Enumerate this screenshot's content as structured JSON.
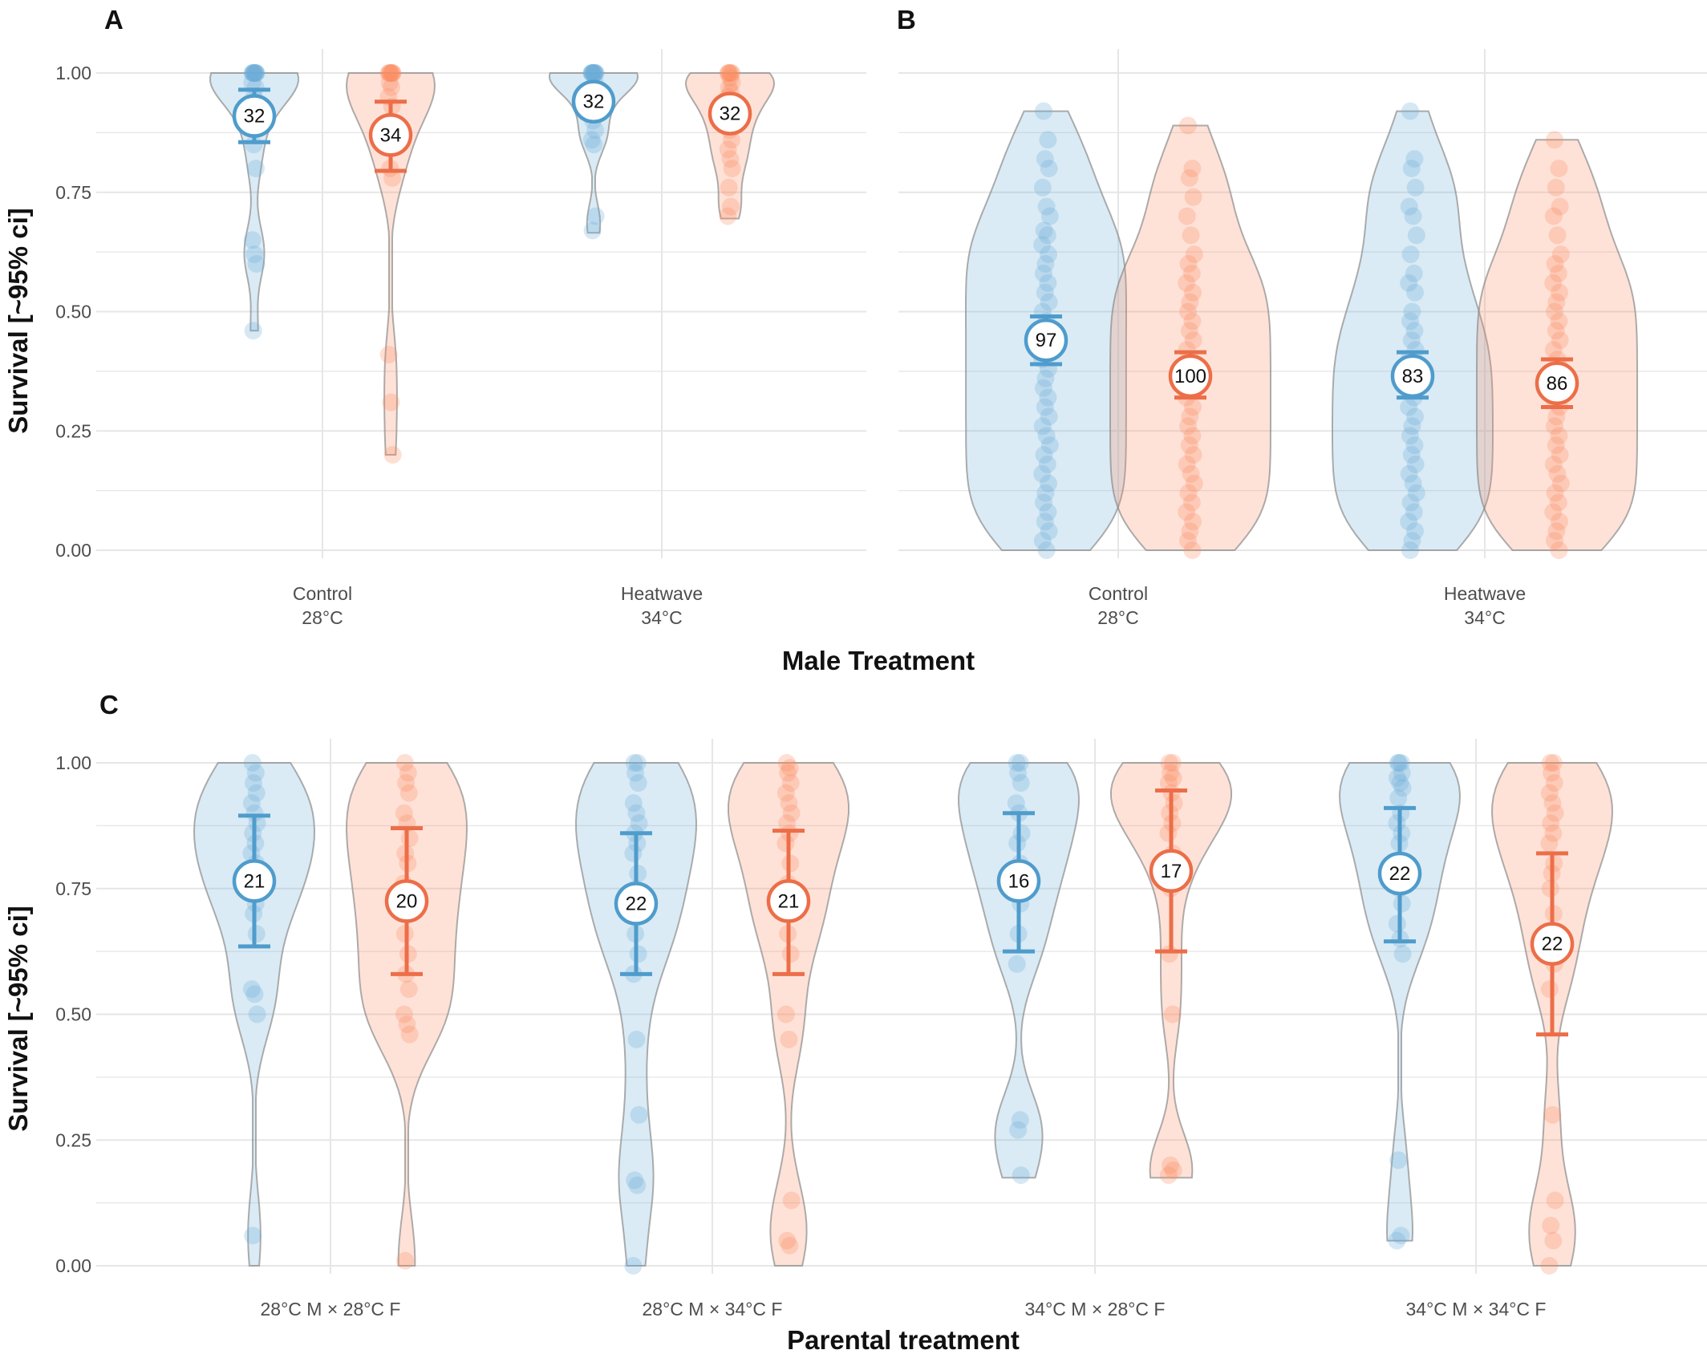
{
  "colors": {
    "blue": "#6baed6",
    "orange": "#fc8d62",
    "blue_line": "#4f9ccc",
    "orange_line": "#ec6e48",
    "grid": "#e6e6e6",
    "violin_stroke": "#8c8c8c"
  },
  "chart_data": [
    {
      "panel": "A",
      "type": "violin",
      "ylabel": "Survival [~95% ci]",
      "xlabel": "",
      "ylim": [
        0,
        1
      ],
      "yticks": [
        "0.00",
        "0.25",
        "0.50",
        "0.75",
        "1.00"
      ],
      "categories": [
        {
          "label_line1": "Control",
          "label_line2": "28°C"
        },
        {
          "label_line1": "Heatwave",
          "label_line2": "34°C"
        }
      ],
      "groups": [
        {
          "category": 0,
          "color": "blue",
          "n": "32",
          "mean": 0.91,
          "ci": [
            0.855,
            0.965
          ],
          "vmin": 0.46,
          "vmax": 1.0,
          "ymin": 0.46,
          "ymax": 1.0,
          "points": [
            1.0,
            1.0,
            1.0,
            1.0,
            1.0,
            1.0,
            1.0,
            1.0,
            1.0,
            0.98,
            0.97,
            0.95,
            0.93,
            0.9,
            0.85,
            0.8,
            0.65,
            0.62,
            0.6,
            0.46
          ]
        },
        {
          "category": 0,
          "color": "orange",
          "n": "34",
          "mean": 0.87,
          "ci": [
            0.795,
            0.94
          ],
          "vmin": 0.2,
          "vmax": 1.0,
          "ymin": 0.2,
          "ymax": 1.0,
          "points": [
            1.0,
            1.0,
            1.0,
            1.0,
            1.0,
            1.0,
            1.0,
            0.98,
            0.97,
            0.95,
            0.93,
            0.9,
            0.88,
            0.85,
            0.8,
            0.78,
            0.41,
            0.31,
            0.2
          ]
        },
        {
          "category": 1,
          "color": "blue",
          "n": "32",
          "mean": 0.94,
          "ci": [
            0.925,
            0.955
          ],
          "vmin": 0.665,
          "vmax": 1.0,
          "ymin": 0.665,
          "ymax": 1.0,
          "points": [
            1.0,
            1.0,
            1.0,
            1.0,
            1.0,
            1.0,
            1.0,
            1.0,
            1.0,
            1.0,
            0.98,
            0.97,
            0.95,
            0.93,
            0.9,
            0.88,
            0.86,
            0.85,
            0.7,
            0.67
          ]
        },
        {
          "category": 1,
          "color": "orange",
          "n": "32",
          "mean": 0.915,
          "ci": [
            0.9,
            0.93
          ],
          "vmin": 0.695,
          "vmax": 1.0,
          "ymin": 0.695,
          "ymax": 1.0,
          "points": [
            1.0,
            1.0,
            1.0,
            1.0,
            1.0,
            0.99,
            0.98,
            0.97,
            0.96,
            0.95,
            0.94,
            0.93,
            0.91,
            0.9,
            0.88,
            0.86,
            0.84,
            0.82,
            0.8,
            0.76,
            0.72,
            0.7
          ]
        }
      ]
    },
    {
      "panel": "B",
      "type": "violin",
      "ylabel": "",
      "xlabel": "",
      "ylim": [
        0,
        1
      ],
      "yticks": [
        "0.00",
        "0.25",
        "0.50",
        "0.75",
        "1.00"
      ],
      "categories": [
        {
          "label_line1": "Control",
          "label_line2": "28°C"
        },
        {
          "label_line1": "Heatwave",
          "label_line2": "34°C"
        }
      ],
      "groups": [
        {
          "category": 0,
          "color": "blue",
          "n": "97",
          "mean": 0.44,
          "ci": [
            0.39,
            0.49
          ],
          "vmin": 0.0,
          "vmax": 0.92,
          "ymin": 0.0,
          "ymax": 0.92,
          "points": [
            0.92,
            0.86,
            0.82,
            0.8,
            0.76,
            0.72,
            0.7,
            0.67,
            0.66,
            0.64,
            0.62,
            0.6,
            0.58,
            0.56,
            0.54,
            0.52,
            0.5,
            0.48,
            0.46,
            0.44,
            0.42,
            0.4,
            0.38,
            0.36,
            0.34,
            0.32,
            0.3,
            0.28,
            0.26,
            0.24,
            0.22,
            0.2,
            0.18,
            0.16,
            0.14,
            0.12,
            0.1,
            0.08,
            0.06,
            0.04,
            0.02,
            0.0
          ]
        },
        {
          "category": 0,
          "color": "orange",
          "n": "100",
          "mean": 0.365,
          "ci": [
            0.32,
            0.415
          ],
          "vmin": 0.0,
          "vmax": 0.89,
          "ymin": 0.0,
          "ymax": 0.89,
          "points": [
            0.89,
            0.8,
            0.78,
            0.74,
            0.7,
            0.66,
            0.62,
            0.6,
            0.58,
            0.56,
            0.54,
            0.52,
            0.5,
            0.48,
            0.46,
            0.44,
            0.42,
            0.4,
            0.38,
            0.36,
            0.34,
            0.32,
            0.3,
            0.28,
            0.26,
            0.24,
            0.22,
            0.2,
            0.18,
            0.16,
            0.14,
            0.12,
            0.1,
            0.08,
            0.06,
            0.04,
            0.02,
            0.0
          ]
        },
        {
          "category": 1,
          "color": "blue",
          "n": "83",
          "mean": 0.365,
          "ci": [
            0.32,
            0.415
          ],
          "vmin": 0.0,
          "vmax": 0.92,
          "ymin": 0.0,
          "ymax": 0.92,
          "points": [
            0.92,
            0.82,
            0.8,
            0.76,
            0.72,
            0.7,
            0.66,
            0.62,
            0.58,
            0.56,
            0.54,
            0.5,
            0.48,
            0.46,
            0.44,
            0.42,
            0.4,
            0.38,
            0.36,
            0.34,
            0.32,
            0.3,
            0.28,
            0.26,
            0.24,
            0.22,
            0.2,
            0.18,
            0.16,
            0.14,
            0.12,
            0.1,
            0.08,
            0.06,
            0.04,
            0.02,
            0.0
          ]
        },
        {
          "category": 1,
          "color": "orange",
          "n": "86",
          "mean": 0.35,
          "ci": [
            0.3,
            0.4
          ],
          "vmin": 0.0,
          "vmax": 0.86,
          "ymin": 0.0,
          "ymax": 0.86,
          "points": [
            0.86,
            0.8,
            0.76,
            0.72,
            0.7,
            0.66,
            0.62,
            0.6,
            0.58,
            0.56,
            0.54,
            0.52,
            0.5,
            0.48,
            0.46,
            0.44,
            0.42,
            0.4,
            0.38,
            0.36,
            0.34,
            0.32,
            0.3,
            0.28,
            0.26,
            0.24,
            0.22,
            0.2,
            0.18,
            0.16,
            0.14,
            0.12,
            0.1,
            0.08,
            0.06,
            0.04,
            0.02,
            0.0
          ]
        }
      ]
    },
    {
      "panel": "C",
      "type": "violin",
      "ylabel": "Survival [~95% ci]",
      "xlabel": "Parental treatment",
      "ylim": [
        0,
        1
      ],
      "yticks": [
        "0.00",
        "0.25",
        "0.50",
        "0.75",
        "1.00"
      ],
      "categories": [
        {
          "label_line1": "28°C M × 28°C F",
          "label_line2": ""
        },
        {
          "label_line1": "28°C M × 34°C F",
          "label_line2": ""
        },
        {
          "label_line1": "34°C M × 28°C F",
          "label_line2": ""
        },
        {
          "label_line1": "34°C M × 34°C F",
          "label_line2": ""
        }
      ],
      "groups": [
        {
          "category": 0,
          "color": "blue",
          "n": "21",
          "mean": 0.765,
          "ci": [
            0.635,
            0.895
          ],
          "vmin": 0.0,
          "vmax": 1.0,
          "ymin": 0.0,
          "ymax": 1.0,
          "points": [
            1.0,
            0.98,
            0.96,
            0.94,
            0.92,
            0.9,
            0.88,
            0.86,
            0.84,
            0.82,
            0.8,
            0.78,
            0.75,
            0.72,
            0.7,
            0.66,
            0.55,
            0.54,
            0.5,
            0.06
          ]
        },
        {
          "category": 0,
          "color": "orange",
          "n": "20",
          "mean": 0.725,
          "ci": [
            0.58,
            0.87
          ],
          "vmin": 0.0,
          "vmax": 1.0,
          "ymin": 0.0,
          "ymax": 1.0,
          "points": [
            1.0,
            0.98,
            0.96,
            0.94,
            0.9,
            0.88,
            0.85,
            0.82,
            0.8,
            0.76,
            0.72,
            0.7,
            0.66,
            0.62,
            0.58,
            0.55,
            0.5,
            0.48,
            0.46,
            0.01
          ]
        },
        {
          "category": 1,
          "color": "blue",
          "n": "22",
          "mean": 0.72,
          "ci": [
            0.58,
            0.86
          ],
          "vmin": 0.0,
          "vmax": 1.0,
          "ymin": 0.0,
          "ymax": 1.0,
          "points": [
            1.0,
            1.0,
            0.98,
            0.96,
            0.92,
            0.9,
            0.88,
            0.86,
            0.84,
            0.82,
            0.78,
            0.75,
            0.72,
            0.7,
            0.66,
            0.62,
            0.58,
            0.45,
            0.3,
            0.17,
            0.16,
            0.0
          ]
        },
        {
          "category": 1,
          "color": "orange",
          "n": "21",
          "mean": 0.725,
          "ci": [
            0.58,
            0.865
          ],
          "vmin": 0.0,
          "vmax": 1.0,
          "ymin": 0.0,
          "ymax": 1.0,
          "points": [
            1.0,
            0.99,
            0.98,
            0.96,
            0.94,
            0.92,
            0.9,
            0.88,
            0.86,
            0.84,
            0.8,
            0.76,
            0.72,
            0.7,
            0.66,
            0.62,
            0.5,
            0.45,
            0.13,
            0.05,
            0.04
          ]
        },
        {
          "category": 2,
          "color": "blue",
          "n": "16",
          "mean": 0.765,
          "ci": [
            0.625,
            0.9
          ],
          "vmin": 0.175,
          "vmax": 1.0,
          "ymin": 0.175,
          "ymax": 1.0,
          "points": [
            1.0,
            1.0,
            0.98,
            0.96,
            0.92,
            0.9,
            0.86,
            0.84,
            0.8,
            0.76,
            0.72,
            0.66,
            0.6,
            0.29,
            0.27,
            0.18
          ]
        },
        {
          "category": 2,
          "color": "orange",
          "n": "17",
          "mean": 0.785,
          "ci": [
            0.625,
            0.945
          ],
          "vmin": 0.175,
          "vmax": 1.0,
          "ymin": 0.175,
          "ymax": 1.0,
          "points": [
            1.0,
            1.0,
            0.98,
            0.97,
            0.96,
            0.94,
            0.92,
            0.9,
            0.88,
            0.86,
            0.82,
            0.75,
            0.62,
            0.5,
            0.2,
            0.19,
            0.18
          ]
        },
        {
          "category": 3,
          "color": "blue",
          "n": "22",
          "mean": 0.78,
          "ci": [
            0.645,
            0.91
          ],
          "vmin": 0.05,
          "vmax": 1.0,
          "ymin": 0.05,
          "ymax": 1.0,
          "points": [
            1.0,
            1.0,
            1.0,
            0.98,
            0.97,
            0.96,
            0.95,
            0.93,
            0.9,
            0.88,
            0.86,
            0.84,
            0.8,
            0.78,
            0.75,
            0.72,
            0.68,
            0.65,
            0.62,
            0.21,
            0.06,
            0.05
          ]
        },
        {
          "category": 3,
          "color": "orange",
          "n": "22",
          "mean": 0.64,
          "ci": [
            0.46,
            0.82
          ],
          "vmin": 0.0,
          "vmax": 1.0,
          "ymin": 0.0,
          "ymax": 1.0,
          "points": [
            1.0,
            1.0,
            0.98,
            0.96,
            0.94,
            0.92,
            0.9,
            0.88,
            0.86,
            0.84,
            0.8,
            0.78,
            0.75,
            0.7,
            0.65,
            0.6,
            0.55,
            0.3,
            0.13,
            0.08,
            0.05,
            0.0
          ]
        }
      ]
    }
  ],
  "panel_labels": {
    "a": "A",
    "b": "B",
    "c": "C"
  },
  "labels": {
    "ylabel_a": "Survival [~95% ci]",
    "ylabel_c": "Survival [~95% ci]",
    "xlabel_ab": "Male Treatment",
    "xlabel_c": "Parental treatment"
  }
}
